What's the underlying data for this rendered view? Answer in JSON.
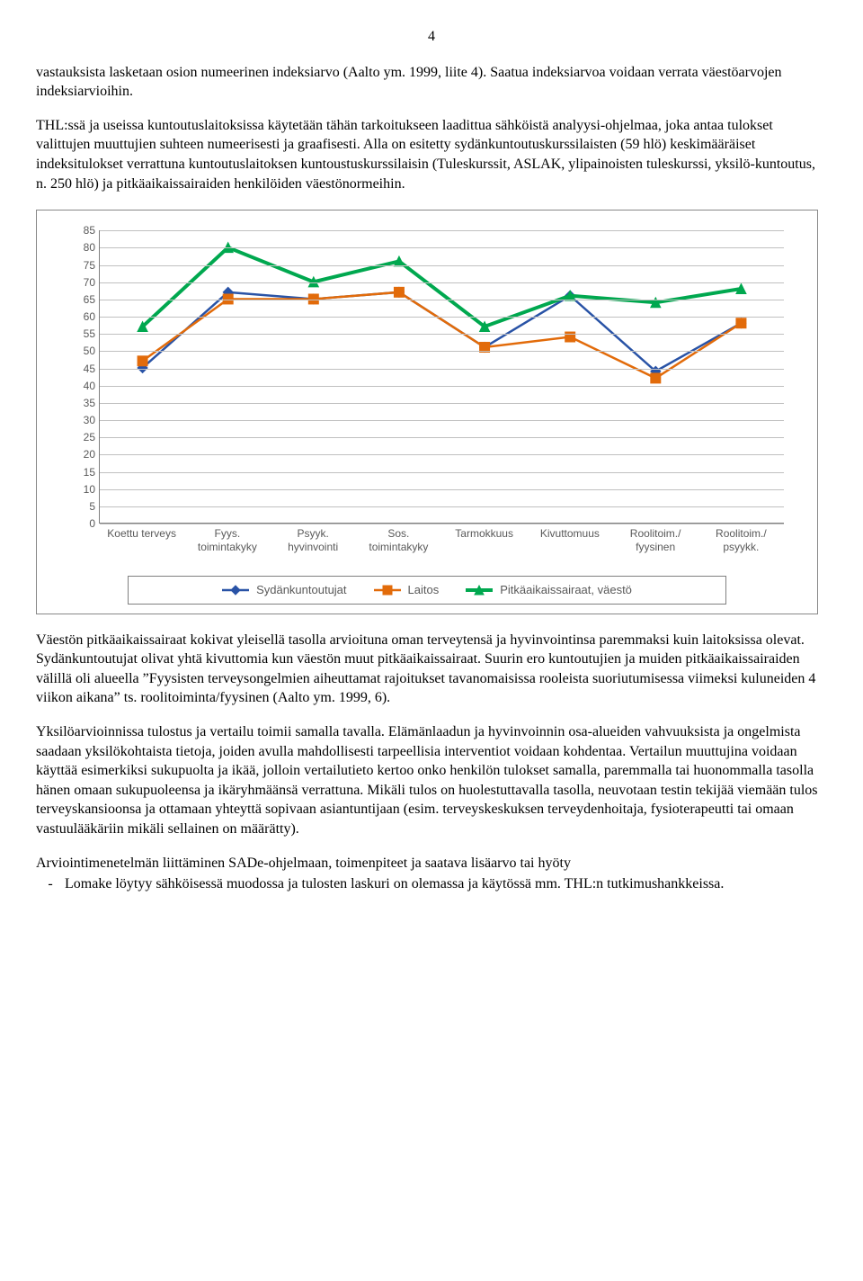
{
  "pagenum": "4",
  "para1": "vastauksista lasketaan osion numeerinen indeksiarvo (Aalto ym. 1999, liite 4). Saatua indeksiarvoa voidaan verrata väestöarvojen indeksiarvioihin.",
  "para2": "THL:ssä ja useissa kuntoutuslaitoksissa käytetään tähän tarkoitukseen laadittua sähköistä analyysi-ohjelmaa, joka antaa tulokset valittujen muuttujien suhteen numeerisesti ja graafisesti. Alla on esitetty sydänkuntoutuskurssilaisten (59 hlö) keskimääräiset indeksitulokset verrattuna kuntoutuslaitoksen kuntoustuskurssilaisin (Tuleskurssit, ASLAK, ylipainoisten tuleskurssi, yksilö-kuntoutus, n. 250 hlö) ja pitkäaikaissairaiden henkilöiden väestönormeihin.",
  "para3": "Väestön pitkäaikaissairaat kokivat yleisellä tasolla arvioituna oman terveytensä ja hyvinvointinsa paremmaksi kuin laitoksissa olevat. Sydänkuntoutujat olivat yhtä kivuttomia kun väestön muut pitkäaikaissairaat. Suurin ero kuntoutujien ja muiden pitkäaikaissairaiden välillä oli alueella ”Fyysisten terveysongelmien aiheuttamat rajoitukset tavanomaisissa rooleista suoriutumisessa viimeksi kuluneiden 4 viikon aikana” ts. roolitoiminta/fyysinen (Aalto ym. 1999, 6).",
  "para4": "Yksilöarvioinnissa tulostus ja vertailu toimii samalla tavalla. Elämänlaadun ja hyvinvoinnin osa-alueiden vahvuuksista ja ongelmista saadaan yksilökohtaista tietoja, joiden avulla mahdollisesti tarpeellisia interventiot voidaan kohdentaa. Vertailun muuttujina voidaan käyttää esimerkiksi sukupuolta ja ikää, jolloin vertailutieto kertoo onko henkilön tulokset samalla, paremmalla tai huonommalla tasolla hänen omaan sukupuoleensa ja ikäryhmäänsä verrattuna. Mikäli tulos on huolestuttavalla tasolla, neuvotaan testin tekijää viemään tulos terveyskansioonsa ja ottamaan yhteyttä sopivaan asiantuntijaan (esim. terveyskeskuksen terveydenhoitaja, fysioterapeutti tai omaan vastuulääkäriin mikäli sellainen on määrätty).",
  "heading1": "Arviointimenetelmän liittäminen SADe-ohjelmaan, toimenpiteet ja saatava lisäarvo tai hyöty",
  "bullet1": "Lomake löytyy sähköisessä muodossa ja tulosten laskuri on olemassa ja käytössä mm. THL:n tutkimushankkeissa.",
  "chart": {
    "type": "line",
    "ylim": [
      0,
      85
    ],
    "ytick_step": 5,
    "categories": [
      "Koettu terveys",
      "Fyys.\ntoimintakyky",
      "Psyyk.\nhyvinvointi",
      "Sos.\ntoimintakyky",
      "Tarmokkuus",
      "Kivuttomuus",
      "Roolitoim./\nfyysinen",
      "Roolitoim./\npsyykk."
    ],
    "grid_color": "#c0c0c0",
    "series": [
      {
        "name": "Sydänkuntoutujat",
        "color": "#2953a6",
        "marker": "diamond",
        "line_width": 2.5,
        "values": [
          45,
          67,
          65,
          67,
          51,
          66,
          44,
          58
        ]
      },
      {
        "name": "Laitos",
        "color": "#e26b0a",
        "marker": "square",
        "line_width": 2.5,
        "values": [
          47,
          65,
          65,
          67,
          51,
          54,
          42,
          58
        ]
      },
      {
        "name": "Pitkäaikaissairaat, väestö",
        "color": "#00a84f",
        "marker": "triangle",
        "line_width": 4,
        "values": [
          57,
          80,
          70,
          76,
          57,
          66,
          64,
          68
        ]
      }
    ]
  }
}
